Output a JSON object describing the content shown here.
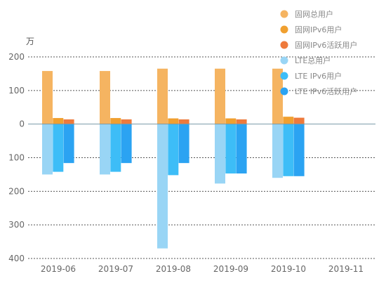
{
  "chart_data": {
    "type": "bar",
    "unit": "万",
    "categories": [
      "2019-06",
      "2019-07",
      "2019-08",
      "2019-09",
      "2019-10",
      "2019-11"
    ],
    "y_ticks": [
      {
        "value": 200,
        "label": "200"
      },
      {
        "value": 100,
        "label": "100"
      },
      {
        "value": 0,
        "label": "0"
      },
      {
        "value": -100,
        "label": "100"
      },
      {
        "value": -200,
        "label": "200"
      },
      {
        "value": -300,
        "label": "300"
      },
      {
        "value": -400,
        "label": "400"
      }
    ],
    "ylim": [
      -400,
      200
    ],
    "grid": true,
    "legend_position": "top-right",
    "series": [
      {
        "name": "固网总用户",
        "color": "#F5B461",
        "values": [
          158,
          158,
          165,
          165,
          165,
          null
        ]
      },
      {
        "name": "固网IPv6用户",
        "color": "#F0A030",
        "values": [
          18,
          18,
          17,
          17,
          22,
          null
        ]
      },
      {
        "name": "固网IPv6活跃用户",
        "color": "#EE7A3C",
        "values": [
          14,
          14,
          14,
          14,
          19,
          null
        ]
      },
      {
        "name": "LTE总用户",
        "color": "#99D5F5",
        "values": [
          -150,
          -150,
          -370,
          -177,
          -160,
          null
        ]
      },
      {
        "name": "LTE IPv6用户",
        "color": "#3DBDF7",
        "values": [
          -142,
          -142,
          -152,
          -147,
          -155,
          null
        ]
      },
      {
        "name": "LTE IPv6活跃用户",
        "color": "#2BA3F2",
        "values": [
          -116,
          -116,
          -116,
          -147,
          -155,
          null
        ]
      }
    ]
  }
}
